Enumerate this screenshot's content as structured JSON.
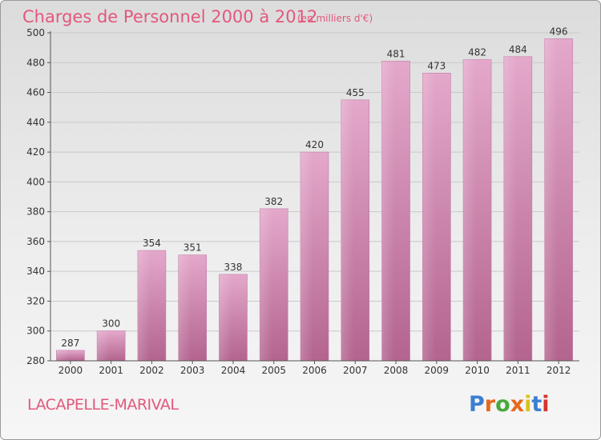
{
  "header": {
    "title": "Charges de Personnel 2000 à 2012",
    "unit_note": "(en milliers d'€)"
  },
  "footer": {
    "commune": "LACAPELLE-MARIVAL",
    "brand": "Proxiti",
    "brand_colors": [
      "#3b7fd1",
      "#e8671b",
      "#49a83b",
      "#e8671b",
      "#d9c21a",
      "#3b7fd1",
      "#d6322e"
    ]
  },
  "chart_data": {
    "type": "bar",
    "categories": [
      "2000",
      "2001",
      "2002",
      "2003",
      "2004",
      "2005",
      "2006",
      "2007",
      "2008",
      "2009",
      "2010",
      "2011",
      "2012"
    ],
    "values": [
      287,
      300,
      354,
      351,
      338,
      382,
      420,
      455,
      481,
      473,
      482,
      484,
      496
    ],
    "title": "Charges de Personnel 2000 à 2012",
    "subtitle": "(en milliers d'€)",
    "ylim": [
      280,
      500
    ],
    "yticks": [
      280,
      300,
      320,
      340,
      360,
      380,
      400,
      420,
      440,
      460,
      480,
      500
    ],
    "grid": true,
    "bar_color": "#d48cb4"
  }
}
